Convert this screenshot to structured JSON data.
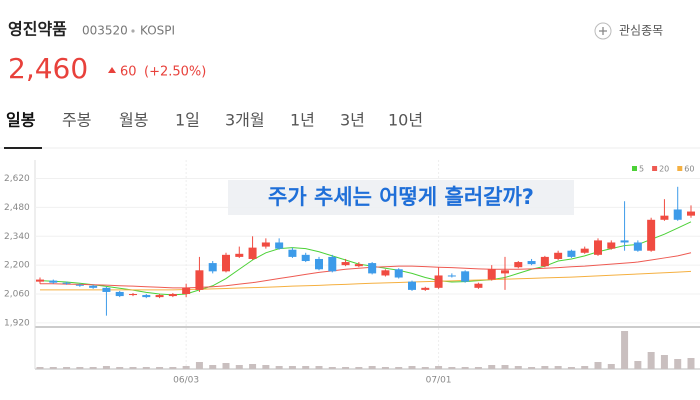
{
  "header": {
    "name": "영진약품",
    "code": "003520",
    "market": "KOSPI",
    "watch": "관심종목",
    "price": "2,460",
    "change": "60",
    "change_pct": "(+2.50%)"
  },
  "tabs": [
    "일봉",
    "주봉",
    "월봉",
    "1일",
    "3개월",
    "1년",
    "3년",
    "10년"
  ],
  "chart_data": {
    "type": "candlestick",
    "categories": [
      null,
      null,
      null,
      null,
      null,
      null,
      null,
      null,
      null,
      null,
      null,
      "06/03",
      null,
      null,
      null,
      null,
      null,
      null,
      null,
      null,
      null,
      null,
      null,
      null,
      null,
      null,
      null,
      null,
      null,
      null,
      "07/01",
      null,
      null,
      null,
      null,
      null,
      null,
      null,
      null,
      null,
      null,
      null,
      null,
      null,
      null,
      null,
      null,
      null,
      null,
      null
    ],
    "open": [
      2120,
      2125,
      2115,
      2105,
      2100,
      2090,
      2070,
      2055,
      2055,
      2045,
      2050,
      2060,
      2080,
      2210,
      2170,
      2240,
      2230,
      2290,
      2310,
      2275,
      2250,
      2230,
      2240,
      2200,
      2195,
      2210,
      2150,
      2180,
      2120,
      2080,
      2090,
      2150,
      2170,
      2090,
      2130,
      2160,
      2190,
      2220,
      2195,
      2230,
      2270,
      2260,
      2250,
      2280,
      2320,
      2310,
      2270,
      2420,
      2470,
      2440
    ],
    "high": [
      2140,
      2130,
      2120,
      2110,
      2105,
      2095,
      2075,
      2065,
      2060,
      2060,
      2065,
      2110,
      2240,
      2220,
      2260,
      2290,
      2340,
      2330,
      2330,
      2285,
      2260,
      2240,
      2250,
      2230,
      2215,
      2215,
      2180,
      2185,
      2125,
      2095,
      2190,
      2160,
      2175,
      2115,
      2200,
      2240,
      2220,
      2230,
      2245,
      2270,
      2275,
      2290,
      2330,
      2320,
      2510,
      2320,
      2430,
      2520,
      2580,
      2490
    ],
    "low": [
      2110,
      2110,
      2105,
      2095,
      2085,
      1955,
      2045,
      2050,
      2040,
      2040,
      2045,
      2045,
      2070,
      2160,
      2165,
      2235,
      2225,
      2280,
      2275,
      2235,
      2215,
      2175,
      2165,
      2195,
      2190,
      2155,
      2145,
      2135,
      2075,
      2075,
      2085,
      2140,
      2115,
      2085,
      2125,
      2080,
      2185,
      2200,
      2190,
      2225,
      2235,
      2255,
      2245,
      2275,
      2270,
      2265,
      2265,
      2415,
      2415,
      2430
    ],
    "close": [
      2130,
      2115,
      2110,
      2100,
      2090,
      2070,
      2050,
      2060,
      2045,
      2055,
      2060,
      2090,
      2175,
      2170,
      2250,
      2255,
      2285,
      2310,
      2280,
      2240,
      2220,
      2180,
      2170,
      2215,
      2205,
      2160,
      2175,
      2140,
      2080,
      2090,
      2150,
      2145,
      2120,
      2110,
      2180,
      2175,
      2215,
      2205,
      2240,
      2260,
      2240,
      2280,
      2320,
      2310,
      2310,
      2270,
      2420,
      2440,
      2420,
      2460
    ],
    "volume": [
      2,
      2,
      2,
      2,
      2,
      3,
      2,
      2,
      2,
      2,
      2,
      3,
      7,
      4,
      6,
      4,
      5,
      4,
      3,
      3,
      3,
      3,
      2,
      2,
      2,
      3,
      2,
      2,
      3,
      2,
      3,
      2,
      2,
      2,
      4,
      4,
      3,
      2,
      3,
      3,
      2,
      3,
      7,
      5,
      38,
      8,
      17,
      14,
      10,
      11
    ],
    "series": [
      {
        "name": "5",
        "color": "#4cd137",
        "values": [
          2125,
          2122,
          2118,
          2112,
          2105,
          2097,
          2088,
          2079,
          2068,
          2060,
          2056,
          2060,
          2080,
          2100,
          2135,
          2180,
          2225,
          2260,
          2280,
          2285,
          2280,
          2265,
          2245,
          2225,
          2205,
          2195,
          2185,
          2175,
          2160,
          2140,
          2125,
          2118,
          2120,
          2125,
          2130,
          2140,
          2160,
          2180,
          2195,
          2220,
          2230,
          2245,
          2265,
          2280,
          2295,
          2300,
          2325,
          2350,
          2380,
          2410
        ]
      },
      {
        "name": "20",
        "color": "#ee5a52",
        "values": [
          2110,
          2110,
          2108,
          2107,
          2105,
          2103,
          2100,
          2098,
          2095,
          2093,
          2090,
          2090,
          2092,
          2095,
          2100,
          2108,
          2115,
          2125,
          2135,
          2145,
          2155,
          2165,
          2172,
          2180,
          2185,
          2190,
          2192,
          2195,
          2195,
          2193,
          2190,
          2188,
          2185,
          2182,
          2180,
          2180,
          2180,
          2182,
          2185,
          2188,
          2192,
          2195,
          2200,
          2205,
          2210,
          2215,
          2225,
          2235,
          2245,
          2260
        ]
      },
      {
        "name": "60",
        "color": "#f5b041",
        "values": [
          2080,
          2080,
          2080,
          2080,
          2080,
          2080,
          2080,
          2080,
          2080,
          2080,
          2080,
          2082,
          2083,
          2085,
          2087,
          2089,
          2091,
          2093,
          2095,
          2098,
          2100,
          2102,
          2105,
          2107,
          2110,
          2112,
          2114,
          2116,
          2118,
          2120,
          2122,
          2124,
          2126,
          2128,
          2130,
          2132,
          2134,
          2136,
          2138,
          2140,
          2142,
          2145,
          2148,
          2151,
          2154,
          2157,
          2160,
          2163,
          2166,
          2170
        ]
      }
    ],
    "ylim": [
      1900,
      2710
    ],
    "yticks": [
      {
        "value": 1920,
        "label": "1,920"
      },
      {
        "value": 2060,
        "label": "2,060"
      },
      {
        "value": 2200,
        "label": "2,200"
      },
      {
        "value": 2340,
        "label": "2,340"
      },
      {
        "value": 2480,
        "label": "2,480"
      },
      {
        "value": 2620,
        "label": "2,620"
      }
    ],
    "grid": true,
    "up_color": "#f04b41",
    "down_color": "#3d9be9",
    "volume_color": "#c9bfbf",
    "annotation": "주가 추세는 어떻게 흘러갈까?"
  }
}
